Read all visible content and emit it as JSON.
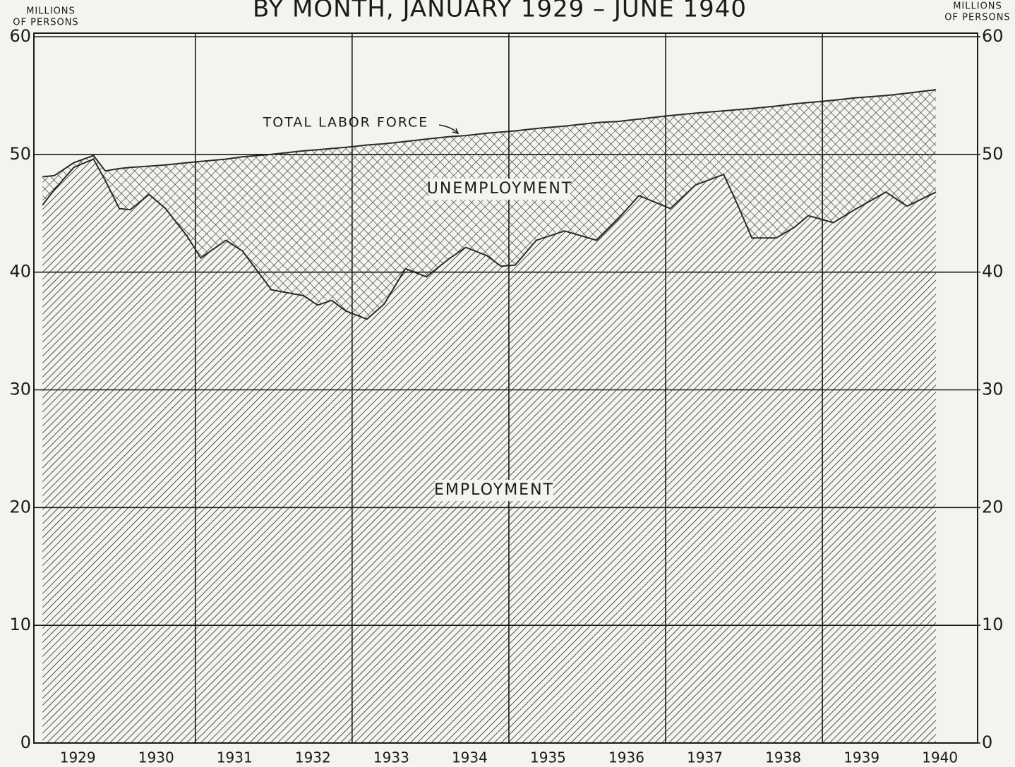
{
  "chart_data": {
    "type": "stacked_area",
    "title": "BY MONTH, JANUARY 1929 – JUNE 1940",
    "ylabel_lines": [
      "MILLIONS",
      "OF PERSONS"
    ],
    "y2label_lines": [
      "MILLIONS",
      "OF PERSONS"
    ],
    "annotation": "TOTAL LABOR FORCE",
    "x": [
      1929.05,
      1929.2,
      1929.45,
      1929.7,
      1929.85,
      1930.03,
      1930.17,
      1930.41,
      1930.62,
      1930.9,
      1931.07,
      1931.39,
      1931.6,
      1931.97,
      1932.38,
      1932.56,
      1932.74,
      1932.92,
      1933.19,
      1933.41,
      1933.68,
      1933.95,
      1934.23,
      1934.45,
      1934.72,
      1934.9,
      1935.08,
      1935.35,
      1935.71,
      1936.12,
      1936.39,
      1936.66,
      1937.06,
      1937.38,
      1937.74,
      1937.92,
      1938.1,
      1938.41,
      1938.64,
      1938.82,
      1939.14,
      1939.41,
      1939.81,
      1940.08,
      1940.45
    ],
    "series": [
      {
        "name": "EMPLOYMENT",
        "color": "#2a2a2a",
        "pattern": "diagonal",
        "values": [
          45.7,
          47.0,
          48.9,
          49.6,
          47.8,
          45.4,
          45.3,
          46.6,
          45.4,
          43.0,
          41.2,
          42.7,
          41.8,
          38.5,
          38.0,
          37.2,
          37.6,
          36.7,
          36.0,
          37.3,
          40.3,
          39.6,
          41.1,
          42.1,
          41.4,
          40.5,
          40.6,
          42.7,
          43.5,
          42.7,
          44.5,
          46.5,
          45.4,
          47.4,
          48.3,
          45.7,
          42.9,
          42.9,
          43.8,
          44.8,
          44.2,
          45.3,
          46.8,
          45.6,
          46.8
        ]
      },
      {
        "name": "UNEMPLOYMENT",
        "color": "#2a2a2a",
        "pattern": "cross",
        "values": [
          2.4,
          1.2,
          0.4,
          0.3,
          0.8,
          3.4,
          3.6,
          2.4,
          3.7,
          6.3,
          8.2,
          6.9,
          8.0,
          11.5,
          12.3,
          13.2,
          12.9,
          13.9,
          14.8,
          13.6,
          10.8,
          11.7,
          10.4,
          9.5,
          10.4,
          11.4,
          11.4,
          9.5,
          8.9,
          10.0,
          8.3,
          6.5,
          7.9,
          6.1,
          5.4,
          8.1,
          11.0,
          11.2,
          10.5,
          9.6,
          10.4,
          9.5,
          8.2,
          9.6,
          8.7
        ]
      }
    ],
    "xlim": [
      1928.94,
      1940.98
    ],
    "xticks": [
      {
        "value": 1929.5,
        "label": "1929"
      },
      {
        "value": 1930.5,
        "label": "1930"
      },
      {
        "value": 1931.5,
        "label": "1931"
      },
      {
        "value": 1932.5,
        "label": "1932"
      },
      {
        "value": 1933.5,
        "label": "1933"
      },
      {
        "value": 1934.5,
        "label": "1934"
      },
      {
        "value": 1935.5,
        "label": "1935"
      },
      {
        "value": 1936.5,
        "label": "1936"
      },
      {
        "value": 1937.5,
        "label": "1937"
      },
      {
        "value": 1938.5,
        "label": "1938"
      },
      {
        "value": 1939.5,
        "label": "1939"
      },
      {
        "value": 1940.5,
        "label": "1940"
      }
    ],
    "xgrid": [
      1931,
      1933,
      1935,
      1937,
      1939
    ],
    "ylim": [
      0,
      60
    ],
    "yticks": [
      0,
      10,
      20,
      30,
      40,
      50,
      60
    ],
    "y2lim": [
      0,
      60
    ],
    "y2ticks": [
      0,
      10,
      20,
      30,
      40,
      50,
      60
    ],
    "grid": true
  }
}
